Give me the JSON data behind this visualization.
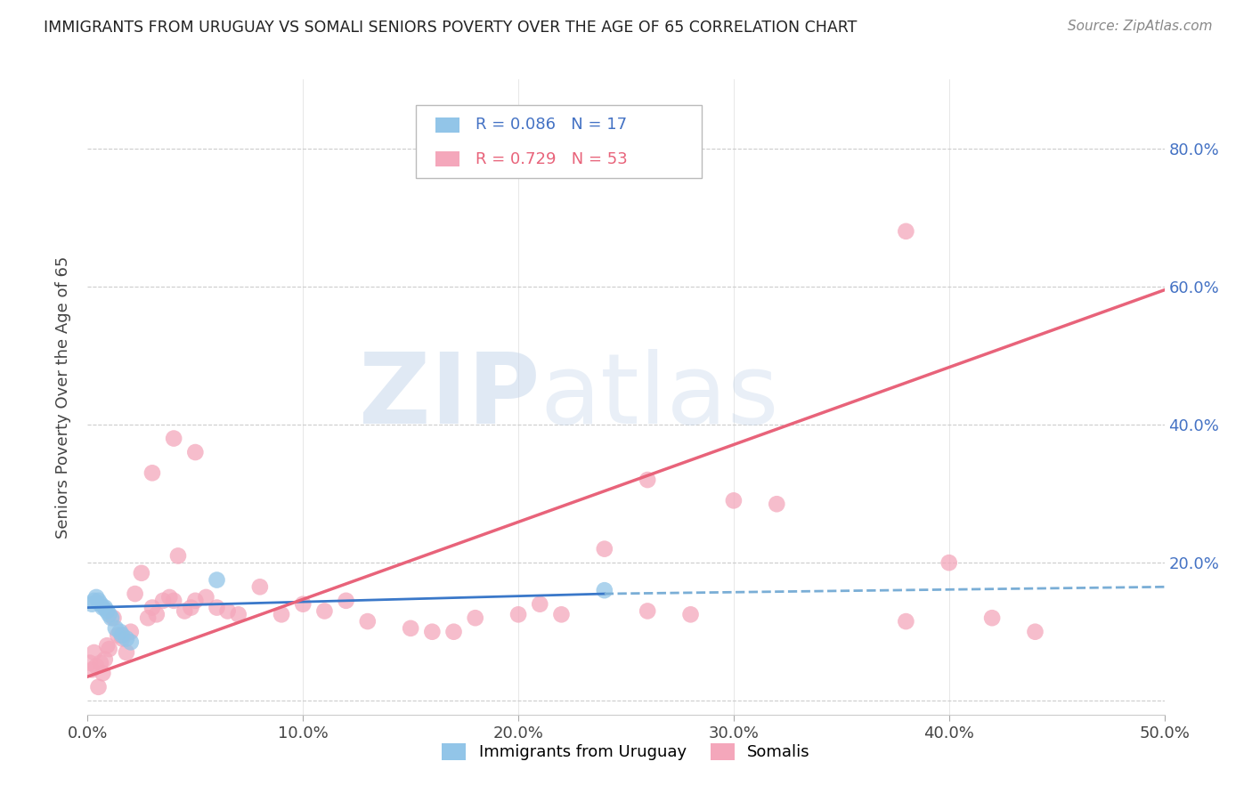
{
  "title": "IMMIGRANTS FROM URUGUAY VS SOMALI SENIORS POVERTY OVER THE AGE OF 65 CORRELATION CHART",
  "source": "Source: ZipAtlas.com",
  "ylabel": "Seniors Poverty Over the Age of 65",
  "xlim": [
    0,
    0.5
  ],
  "ylim": [
    -0.02,
    0.9
  ],
  "ytick_vals": [
    0.0,
    0.2,
    0.4,
    0.6,
    0.8
  ],
  "xtick_vals": [
    0.0,
    0.1,
    0.2,
    0.3,
    0.4,
    0.5
  ],
  "uruguay_R": "0.086",
  "uruguay_N": "17",
  "somali_R": "0.729",
  "somali_N": "53",
  "uruguay_color": "#92C5E8",
  "somali_color": "#F4A7BB",
  "trendline_uruguay_solid_color": "#3A78C9",
  "trendline_uruguay_dash_color": "#7AAED6",
  "trendline_somali_color": "#E8637A",
  "uruguay_x": [
    0.002,
    0.003,
    0.004,
    0.005,
    0.006,
    0.007,
    0.008,
    0.009,
    0.01,
    0.011,
    0.013,
    0.015,
    0.016,
    0.018,
    0.02,
    0.06,
    0.24
  ],
  "uruguay_y": [
    0.14,
    0.145,
    0.15,
    0.145,
    0.14,
    0.135,
    0.135,
    0.13,
    0.125,
    0.12,
    0.105,
    0.1,
    0.095,
    0.09,
    0.085,
    0.175,
    0.16
  ],
  "somali_x": [
    0.001,
    0.002,
    0.003,
    0.004,
    0.005,
    0.006,
    0.007,
    0.008,
    0.009,
    0.01,
    0.012,
    0.014,
    0.016,
    0.018,
    0.02,
    0.022,
    0.025,
    0.028,
    0.03,
    0.032,
    0.035,
    0.038,
    0.04,
    0.042,
    0.045,
    0.048,
    0.05,
    0.055,
    0.06,
    0.065,
    0.07,
    0.08,
    0.09,
    0.1,
    0.11,
    0.12,
    0.13,
    0.15,
    0.16,
    0.17,
    0.18,
    0.2,
    0.21,
    0.22,
    0.24,
    0.26,
    0.28,
    0.3,
    0.32,
    0.38,
    0.4,
    0.42,
    0.44
  ],
  "somali_y": [
    0.055,
    0.045,
    0.07,
    0.05,
    0.02,
    0.055,
    0.04,
    0.06,
    0.08,
    0.075,
    0.12,
    0.095,
    0.09,
    0.07,
    0.1,
    0.155,
    0.185,
    0.12,
    0.135,
    0.125,
    0.145,
    0.15,
    0.145,
    0.21,
    0.13,
    0.135,
    0.145,
    0.15,
    0.135,
    0.13,
    0.125,
    0.165,
    0.125,
    0.14,
    0.13,
    0.145,
    0.115,
    0.105,
    0.1,
    0.1,
    0.12,
    0.125,
    0.14,
    0.125,
    0.22,
    0.13,
    0.125,
    0.29,
    0.285,
    0.115,
    0.2,
    0.12,
    0.1
  ],
  "somali_outlier_x": [
    0.38
  ],
  "somali_outlier_y": [
    0.68
  ],
  "somali_outlier2_x": [
    0.04
  ],
  "somali_outlier2_y": [
    0.38
  ],
  "somali_outlier3_x": [
    0.05
  ],
  "somali_outlier3_y": [
    0.36
  ],
  "somali_outlier4_x": [
    0.03
  ],
  "somali_outlier4_y": [
    0.33
  ],
  "somali_outlier5_x": [
    0.26
  ],
  "somali_outlier5_y": [
    0.32
  ],
  "trendline_uru_x0": 0.0,
  "trendline_uru_y0": 0.135,
  "trendline_uru_x1": 0.24,
  "trendline_uru_y1": 0.155,
  "trendline_uru_xdash_x0": 0.24,
  "trendline_uru_xdash_y0": 0.155,
  "trendline_uru_xdash_x1": 0.5,
  "trendline_uru_xdash_y1": 0.165,
  "trendline_som_x0": 0.0,
  "trendline_som_y0": 0.035,
  "trendline_som_x1": 0.5,
  "trendline_som_y1": 0.595
}
